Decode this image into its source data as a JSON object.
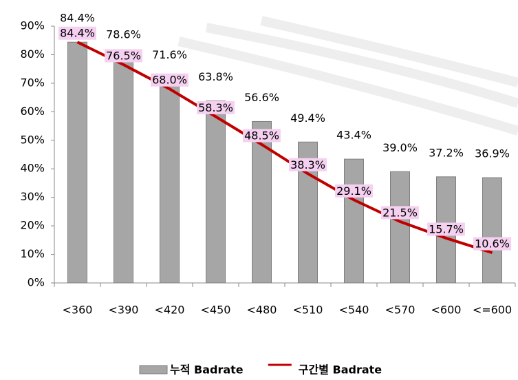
{
  "chart_data": {
    "type": "bar",
    "categories": [
      "<360",
      "<390",
      "<420",
      "<450",
      "<480",
      "<510",
      "<540",
      "<570",
      "<600",
      "<=600"
    ],
    "series": [
      {
        "name": "누적 Badrate",
        "type": "bar",
        "color": "#a6a6a6",
        "values": [
          84.4,
          78.6,
          71.6,
          63.8,
          56.6,
          49.4,
          43.4,
          39.0,
          37.2,
          36.9
        ],
        "value_labels": [
          "84.4%",
          "78.6%",
          "71.6%",
          "63.8%",
          "56.6%",
          "49.4%",
          "43.4%",
          "39.0%",
          "37.2%",
          "36.9%"
        ]
      },
      {
        "name": "구간별 Badrate",
        "type": "line",
        "color": "#c00000",
        "values": [
          84.4,
          76.5,
          68.0,
          58.3,
          48.5,
          38.3,
          29.1,
          21.5,
          15.7,
          10.6
        ],
        "value_labels": [
          "84.4%",
          "76.5%",
          "68.0%",
          "58.3%",
          "48.5%",
          "38.3%",
          "29.1%",
          "21.5%",
          "15.7%",
          "10.6%"
        ]
      }
    ],
    "ylim": [
      0,
      90
    ],
    "yticks": [
      {
        "value": 0,
        "label": "0%"
      },
      {
        "value": 10,
        "label": "10%"
      },
      {
        "value": 20,
        "label": "20%"
      },
      {
        "value": 30,
        "label": "30%"
      },
      {
        "value": 40,
        "label": "40%"
      },
      {
        "value": 50,
        "label": "50%"
      },
      {
        "value": 60,
        "label": "60%"
      },
      {
        "value": 70,
        "label": "70%"
      },
      {
        "value": 80,
        "label": "80%"
      },
      {
        "value": 90,
        "label": "90%"
      }
    ],
    "grid": false,
    "legend": "bottom"
  }
}
